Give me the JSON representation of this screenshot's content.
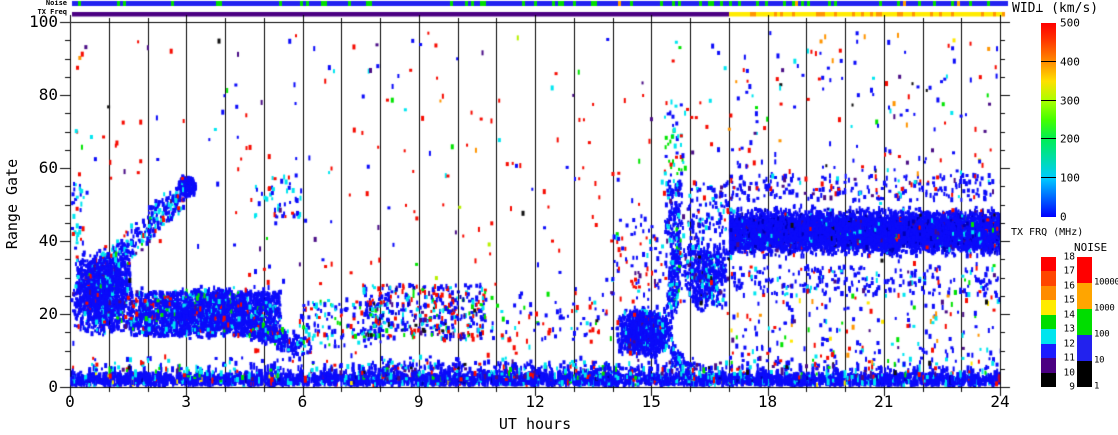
{
  "strips": {
    "noise_label": "Noise",
    "txfreq_label": "TX Freq",
    "noise_colors": {
      "blue": "#2222F0",
      "green": "#00DD00",
      "orange": "#FFA000"
    },
    "noise_weights": {
      "blue": 0.78,
      "green": 0.2,
      "orange": 0.02
    },
    "txfreq_before_transition_color": "#4B0082",
    "txfreq_after_transition_colors": {
      "yellow": "#FFEB00",
      "orange": "#FF9500"
    },
    "txfreq_orange_weight": 0.26,
    "txfreq_transition_hour": 17
  },
  "axes": {
    "x_title": "UT hours",
    "y_title": "Range Gate",
    "x_ticks": [
      "0",
      "3",
      "6",
      "9",
      "12",
      "15",
      "18",
      "21",
      "24"
    ],
    "y_ticks": [
      "0",
      "20",
      "40",
      "60",
      "80",
      "100"
    ],
    "x_range": [
      0,
      24
    ],
    "y_range": [
      0,
      100
    ]
  },
  "colorbars": {
    "wid": {
      "title": "WID⊥ (km/s)",
      "tick_labels": [
        "0",
        "100",
        "200",
        "300",
        "400",
        "500"
      ],
      "gradient_bottom_to_top": [
        [
          "#0000FF",
          0
        ],
        [
          "#00CCFF",
          0.2
        ],
        [
          "#00EE55",
          0.4
        ],
        [
          "#44FF00",
          0.5
        ],
        [
          "#AAFF00",
          0.6
        ],
        [
          "#FFE000",
          0.7
        ],
        [
          "#FF8C00",
          0.8
        ],
        [
          "#FF3000",
          0.92
        ],
        [
          "#FF0000",
          1
        ]
      ]
    },
    "txfrq": {
      "title": "TX FRQ (MHz)",
      "tick_labels_top_to_bottom": [
        "18",
        "17",
        "16",
        "15",
        "14",
        "13",
        "12",
        "11",
        "10",
        "9"
      ],
      "segment_colors_top_to_bottom": [
        "#FF0000",
        "#FF4500",
        "#FF8C00",
        "#FFEB00",
        "#00DD00",
        "#00E5EE",
        "#1C1CFF",
        "#4B0082",
        "#000000"
      ]
    },
    "noise": {
      "title": "NOISE",
      "tick_labels_top_to_bottom": [
        "10000",
        "1000",
        "100",
        "10",
        "1"
      ],
      "segment_colors_top_to_bottom": [
        "#FF0000",
        "#FFA500",
        "#00DD00",
        "#2222EE",
        "#000000"
      ]
    }
  },
  "chart_data": {
    "type": "scatter",
    "title": "",
    "xlabel": "UT hours",
    "ylabel": "Range Gate",
    "xlim": [
      0,
      24
    ],
    "ylim": [
      0,
      100
    ],
    "grid": "vertical black line every 1 hour, full height",
    "seed": 1337,
    "palette": {
      "blue": "#0B0BFA",
      "dkblue": "#0000B4",
      "cyan": "#00E6F0",
      "green": "#00E400",
      "red": "#F60B00",
      "orange": "#FF9500",
      "yellow": "#FFE800",
      "yellowgreen": "#B8F000",
      "purple": "#4A0D86",
      "black": "#101010"
    },
    "regions": [
      {
        "name": "bottom-band",
        "type": "rect",
        "x": [
          0,
          24
        ],
        "y": [
          0,
          2.4
        ],
        "n": 3000,
        "tall": true,
        "colors": {
          "blue": 0.84,
          "cyan": 0.09,
          "dkblue": 0.03,
          "red": 0.02,
          "green": 0.01,
          "yellow": 0.01
        }
      },
      {
        "name": "bottom-spikes",
        "type": "rect",
        "x": [
          0,
          24
        ],
        "y": [
          2,
          5
        ],
        "n": 380,
        "tall": true,
        "colors": {
          "blue": 0.78,
          "cyan": 0.12,
          "red": 0.04,
          "green": 0.03,
          "purple": 0.03
        }
      },
      {
        "name": "bottom-fringe",
        "type": "rect",
        "x": [
          0,
          24
        ],
        "y": [
          2,
          8
        ],
        "n": 300,
        "colors": {
          "blue": 0.6,
          "cyan": 0.16,
          "red": 0.1,
          "green": 0.05,
          "purple": 0.05,
          "black": 0.04
        }
      },
      {
        "name": "bottom-fringe-mid",
        "type": "rect",
        "x": [
          7.5,
          16.2
        ],
        "y": [
          2,
          7
        ],
        "n": 240,
        "colors": {
          "blue": 0.62,
          "cyan": 0.18,
          "red": 0.08,
          "green": 0.06,
          "purple": 0.06
        }
      },
      {
        "name": "left-blob",
        "type": "blob",
        "x": [
          0,
          1.6
        ],
        "y": [
          14,
          38
        ],
        "n": 1500,
        "colors": {
          "blue": 0.87,
          "cyan": 0.08,
          "red": 0.02,
          "green": 0.01,
          "purple": 0.02
        }
      },
      {
        "name": "rising-chain",
        "type": "diag",
        "from": [
          1.1,
          35
        ],
        "to": [
          3.0,
          54
        ],
        "sx": 0.18,
        "sy": 3.5,
        "n": 260,
        "colors": {
          "blue": 0.7,
          "cyan": 0.22,
          "red": 0.03,
          "green": 0.03,
          "purple": 0.02
        }
      },
      {
        "name": "blob-gate55",
        "type": "blob",
        "x": [
          2.72,
          3.22
        ],
        "y": [
          52,
          58
        ],
        "n": 200,
        "colors": {
          "blue": 0.93,
          "cyan": 0.05,
          "purple": 0.02
        }
      },
      {
        "name": "mid-band",
        "type": "rect",
        "x": [
          1.5,
          5.4
        ],
        "y": [
          14,
          26
        ],
        "n": 1500,
        "colors": {
          "blue": 0.85,
          "cyan": 0.1,
          "red": 0.02,
          "green": 0.02,
          "purple": 0.01
        }
      },
      {
        "name": "mid-band-core",
        "type": "blob",
        "x": [
          1.6,
          5.3
        ],
        "y": [
          13,
          28
        ],
        "n": 800,
        "colors": {
          "blue": 0.88,
          "cyan": 0.08,
          "red": 0.02,
          "green": 0.02
        }
      },
      {
        "name": "mid-band-taper",
        "type": "diag",
        "from": [
          4.7,
          16
        ],
        "to": [
          6.0,
          11
        ],
        "sx": 0.25,
        "sy": 2.5,
        "n": 240,
        "colors": {
          "blue": 0.82,
          "cyan": 0.12,
          "red": 0.03,
          "green": 0.03
        }
      },
      {
        "name": "chain-5ut",
        "type": "rect",
        "x": [
          4.6,
          5.95
        ],
        "y": [
          46,
          58
        ],
        "n": 48,
        "colors": {
          "blue": 0.55,
          "cyan": 0.35,
          "red": 0.1
        }
      },
      {
        "name": "sparse-6-8",
        "type": "rect",
        "x": [
          5.9,
          8.1
        ],
        "y": [
          11,
          24
        ],
        "n": 130,
        "colors": {
          "blue": 0.6,
          "cyan": 0.2,
          "red": 0.12,
          "green": 0.08
        }
      },
      {
        "name": "mixed-8-11",
        "type": "rect",
        "x": [
          7.5,
          10.7
        ],
        "y": [
          13,
          28
        ],
        "n": 430,
        "colors": {
          "blue": 0.44,
          "red": 0.22,
          "cyan": 0.15,
          "green": 0.07,
          "purple": 0.05,
          "black": 0.03,
          "dkblue": 0.04
        }
      },
      {
        "name": "sparse-11-14",
        "type": "rect",
        "x": [
          10.7,
          14.0
        ],
        "y": [
          12,
          26
        ],
        "n": 75,
        "colors": {
          "blue": 0.5,
          "red": 0.25,
          "cyan": 0.15,
          "green": 0.1
        }
      },
      {
        "name": "blob-15ut",
        "type": "blob",
        "x": [
          14.05,
          15.55
        ],
        "y": [
          8,
          22
        ],
        "n": 1150,
        "colors": {
          "blue": 0.9,
          "cyan": 0.06,
          "red": 0.02,
          "purple": 0.02
        }
      },
      {
        "name": "blob-15ut-tail",
        "type": "diag",
        "from": [
          15.45,
          10
        ],
        "to": [
          15.95,
          3
        ],
        "sx": 0.12,
        "sy": 2,
        "n": 70,
        "colors": {
          "blue": 0.85,
          "cyan": 0.15
        }
      },
      {
        "name": "rise-15ut",
        "type": "diag",
        "from": [
          15.5,
          21
        ],
        "to": [
          15.62,
          40
        ],
        "sx": 0.14,
        "sy": 3,
        "n": 170,
        "colors": {
          "blue": 0.75,
          "cyan": 0.18,
          "green": 0.04,
          "red": 0.03
        }
      },
      {
        "name": "streak-15ut-top",
        "type": "rect",
        "x": [
          15.35,
          15.8
        ],
        "y": [
          40,
          57
        ],
        "n": 120,
        "colors": {
          "blue": 0.8,
          "cyan": 0.12,
          "green": 0.05,
          "purple": 0.03
        }
      },
      {
        "name": "wisp-15ut",
        "type": "rect",
        "x": [
          15.3,
          15.85
        ],
        "y": [
          58,
          79
        ],
        "n": 42,
        "colors": {
          "green": 0.35,
          "cyan": 0.33,
          "blue": 0.25,
          "red": 0.07
        }
      },
      {
        "name": "dip-16ut",
        "type": "blob",
        "x": [
          15.7,
          17.05
        ],
        "y": [
          20,
          42
        ],
        "n": 520,
        "colors": {
          "blue": 0.85,
          "cyan": 0.1,
          "purple": 0.03,
          "black": 0.02
        }
      },
      {
        "name": "pre-band-top",
        "type": "rect",
        "x": [
          15.9,
          17.0
        ],
        "y": [
          42,
          56
        ],
        "n": 100,
        "colors": {
          "blue": 0.8,
          "cyan": 0.1,
          "purple": 0.05,
          "red": 0.05
        }
      },
      {
        "name": "main-band",
        "type": "hband",
        "x": [
          17.0,
          24
        ],
        "yc": 42.5,
        "ysig": 5,
        "yclip": [
          30.5,
          54
        ],
        "n": 7200,
        "colors": {
          "blue": 0.9,
          "dkblue": 0.05,
          "cyan": 0.02,
          "purple": 0.015,
          "red": 0.008,
          "green": 0.004,
          "black": 0.003
        }
      },
      {
        "name": "band-top-fringe",
        "type": "rect",
        "x": [
          17,
          24
        ],
        "y": [
          51,
          58
        ],
        "n": 220,
        "colors": {
          "blue": 0.8,
          "cyan": 0.08,
          "purple": 0.06,
          "red": 0.06
        }
      },
      {
        "name": "band-bot-fringe",
        "type": "rect",
        "x": [
          17,
          24
        ],
        "y": [
          25,
          33
        ],
        "n": 250,
        "colors": {
          "blue": 0.82,
          "cyan": 0.08,
          "red": 0.05,
          "purple": 0.05
        }
      },
      {
        "name": "below-band",
        "type": "rect",
        "x": [
          17,
          24
        ],
        "y": [
          5,
          24
        ],
        "n": 160,
        "colors": {
          "blue": 0.6,
          "red": 0.1,
          "cyan": 0.08,
          "purple": 0.07,
          "green": 0.05,
          "yellow": 0.05,
          "orange": 0.05
        }
      },
      {
        "name": "upper-sparse",
        "type": "rect",
        "x": [
          0,
          24
        ],
        "y": [
          6,
          97
        ],
        "n": 430,
        "colors": {
          "red": 0.48,
          "blue": 0.27,
          "cyan": 0.08,
          "green": 0.06,
          "purple": 0.05,
          "black": 0.03,
          "orange": 0.02,
          "yellowgreen": 0.01
        }
      },
      {
        "name": "upper-right-sparse",
        "type": "rect",
        "x": [
          17,
          24
        ],
        "y": [
          55,
          97
        ],
        "n": 110,
        "colors": {
          "blue": 0.55,
          "red": 0.14,
          "cyan": 0.09,
          "purple": 0.09,
          "orange": 0.06,
          "yellow": 0.04,
          "black": 0.03
        }
      },
      {
        "name": "left-edge",
        "type": "rect",
        "x": [
          0,
          0.35
        ],
        "y": [
          38,
          56
        ],
        "n": 32,
        "colors": {
          "blue": 0.5,
          "cyan": 0.4,
          "red": 0.1
        }
      },
      {
        "name": "above-blob15",
        "type": "rect",
        "x": [
          13.9,
          15.45
        ],
        "y": [
          24,
          46
        ],
        "n": 85,
        "colors": {
          "blue": 0.5,
          "red": 0.25,
          "cyan": 0.15,
          "purple": 0.1
        }
      }
    ]
  }
}
